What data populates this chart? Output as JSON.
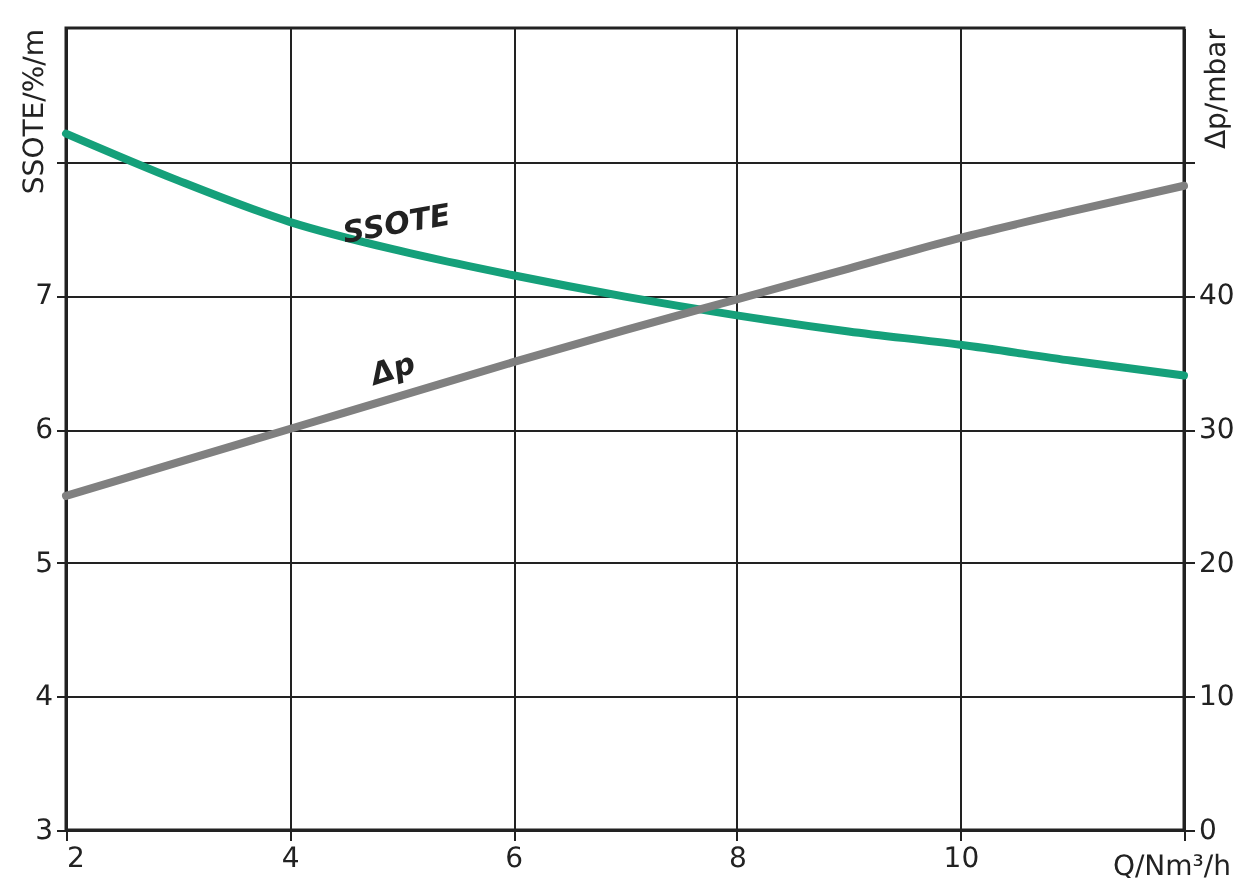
{
  "chart_data": {
    "type": "line",
    "xlabel": "Q/Nm³/h",
    "ylabel": "SSOTE/%/m",
    "y2label": "Δp/mbar",
    "x": [
      2,
      3,
      4,
      5,
      6,
      7,
      8,
      9,
      10,
      11,
      12
    ],
    "series": [
      {
        "color": "#15a07a",
        "values": [
          8.21,
          7.86,
          7.55,
          7.33,
          7.15,
          6.99,
          6.85,
          6.73,
          6.63,
          6.51,
          6.4
        ]
      },
      {
        "color": "#808080",
        "axis": "y2",
        "values": [
          25,
          27.5,
          30,
          32.5,
          35,
          37.4,
          39.7,
          42,
          44.3,
          46.3,
          48.2
        ]
      }
    ],
    "annotations": [
      {
        "text": "SSOTE",
        "x": 5,
        "y": 7.33
      },
      {
        "text": "Δp",
        "x": 5,
        "y": 6.25
      }
    ],
    "xlim": [
      2,
      12
    ],
    "xticks": [
      2,
      4,
      6,
      8,
      10,
      {
        "value": 12,
        "label": null
      }
    ],
    "ylim": [
      3,
      9
    ],
    "yticks": [
      3,
      4,
      5,
      6,
      7,
      {
        "value": 8,
        "label": null
      }
    ],
    "y2lim": [
      0,
      60
    ],
    "y2ticks": [
      0,
      10,
      20,
      30,
      40,
      {
        "value": 50,
        "label": null
      }
    ],
    "grid": true,
    "marker": "none",
    "line_style": "solid"
  }
}
